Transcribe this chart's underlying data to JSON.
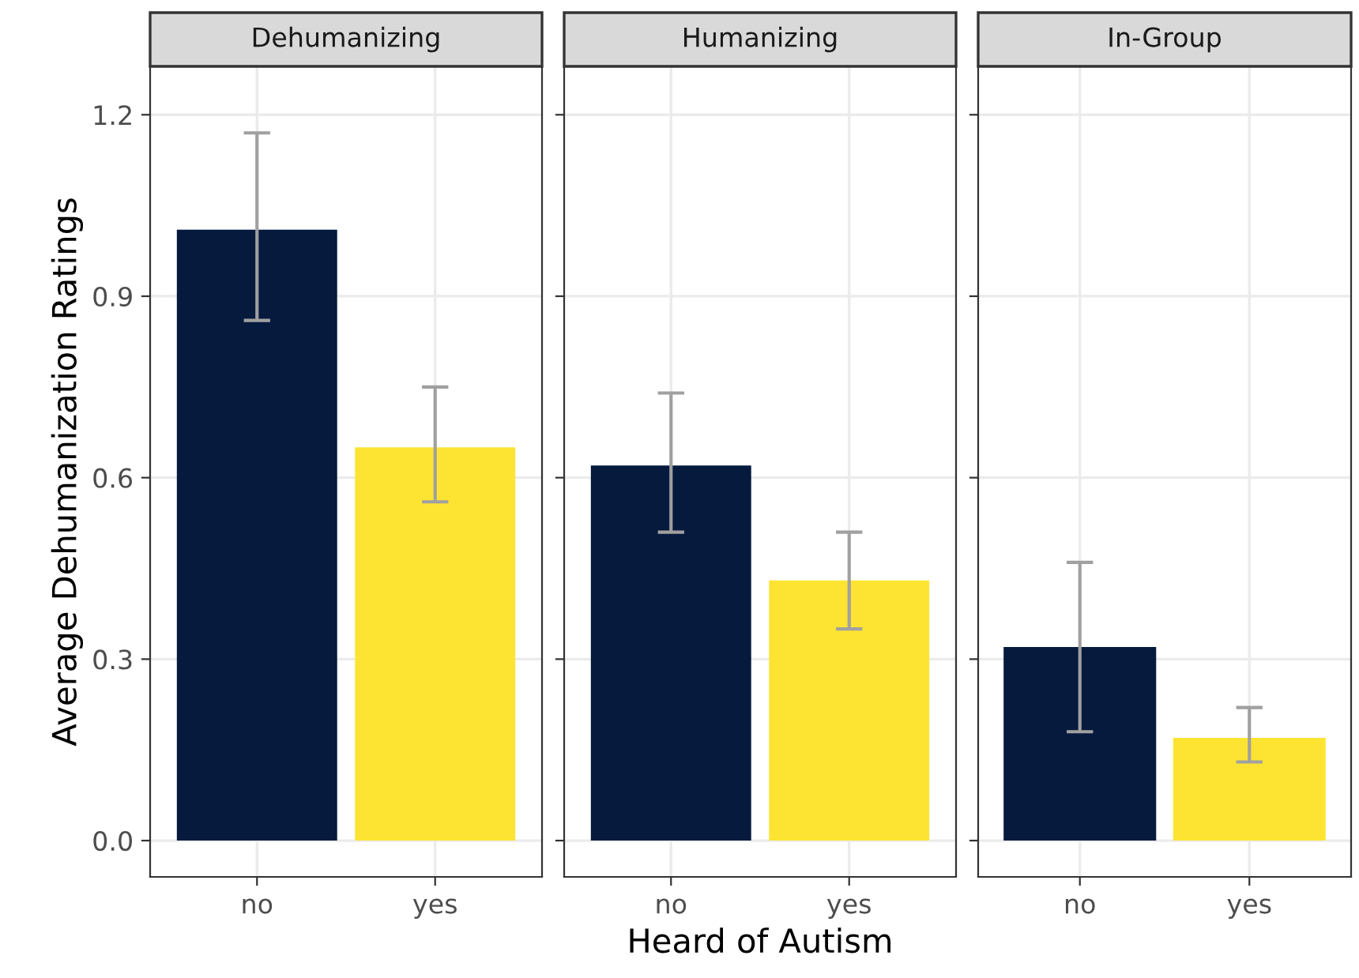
{
  "chart_data": [
    {
      "type": "bar",
      "title": "Dehumanizing",
      "ylabel": "Average Dehumanization Ratings",
      "categories": [
        "no",
        "yes"
      ],
      "values": [
        1.01,
        0.65
      ],
      "colors": [
        "#061a3e",
        "#fde432"
      ],
      "errors": [
        [
          0.86,
          1.17
        ],
        [
          0.56,
          0.75
        ]
      ],
      "ylim": [
        -0.06,
        1.28
      ],
      "yticks": [
        {
          "value": 0,
          "label": "0.0"
        },
        0.3,
        0.6,
        0.9,
        1.2
      ],
      "grid": true
    },
    {
      "type": "bar",
      "title": "Humanizing",
      "xlabel": "Heard of Autism",
      "categories": [
        "no",
        "yes"
      ],
      "values": [
        0.62,
        0.43
      ],
      "colors": [
        "#061a3e",
        "#fde432"
      ],
      "errors": [
        [
          0.51,
          0.74
        ],
        [
          0.35,
          0.51
        ]
      ],
      "ylim": [
        -0.06,
        1.28
      ],
      "yticks": [
        0.0,
        0.3,
        0.6,
        0.9,
        1.2
      ],
      "grid": true,
      "tick_labels": "x"
    },
    {
      "type": "bar",
      "title": "In-Group",
      "categories": [
        "no",
        "yes"
      ],
      "values": [
        0.32,
        0.17
      ],
      "colors": [
        "#061a3e",
        "#fde432"
      ],
      "errors": [
        [
          0.18,
          0.46
        ],
        [
          0.13,
          0.22
        ]
      ],
      "ylim": [
        -0.06,
        1.28
      ],
      "yticks": [
        0.0,
        0.3,
        0.6,
        0.9,
        1.2
      ],
      "grid": true,
      "tick_labels": "x"
    }
  ]
}
